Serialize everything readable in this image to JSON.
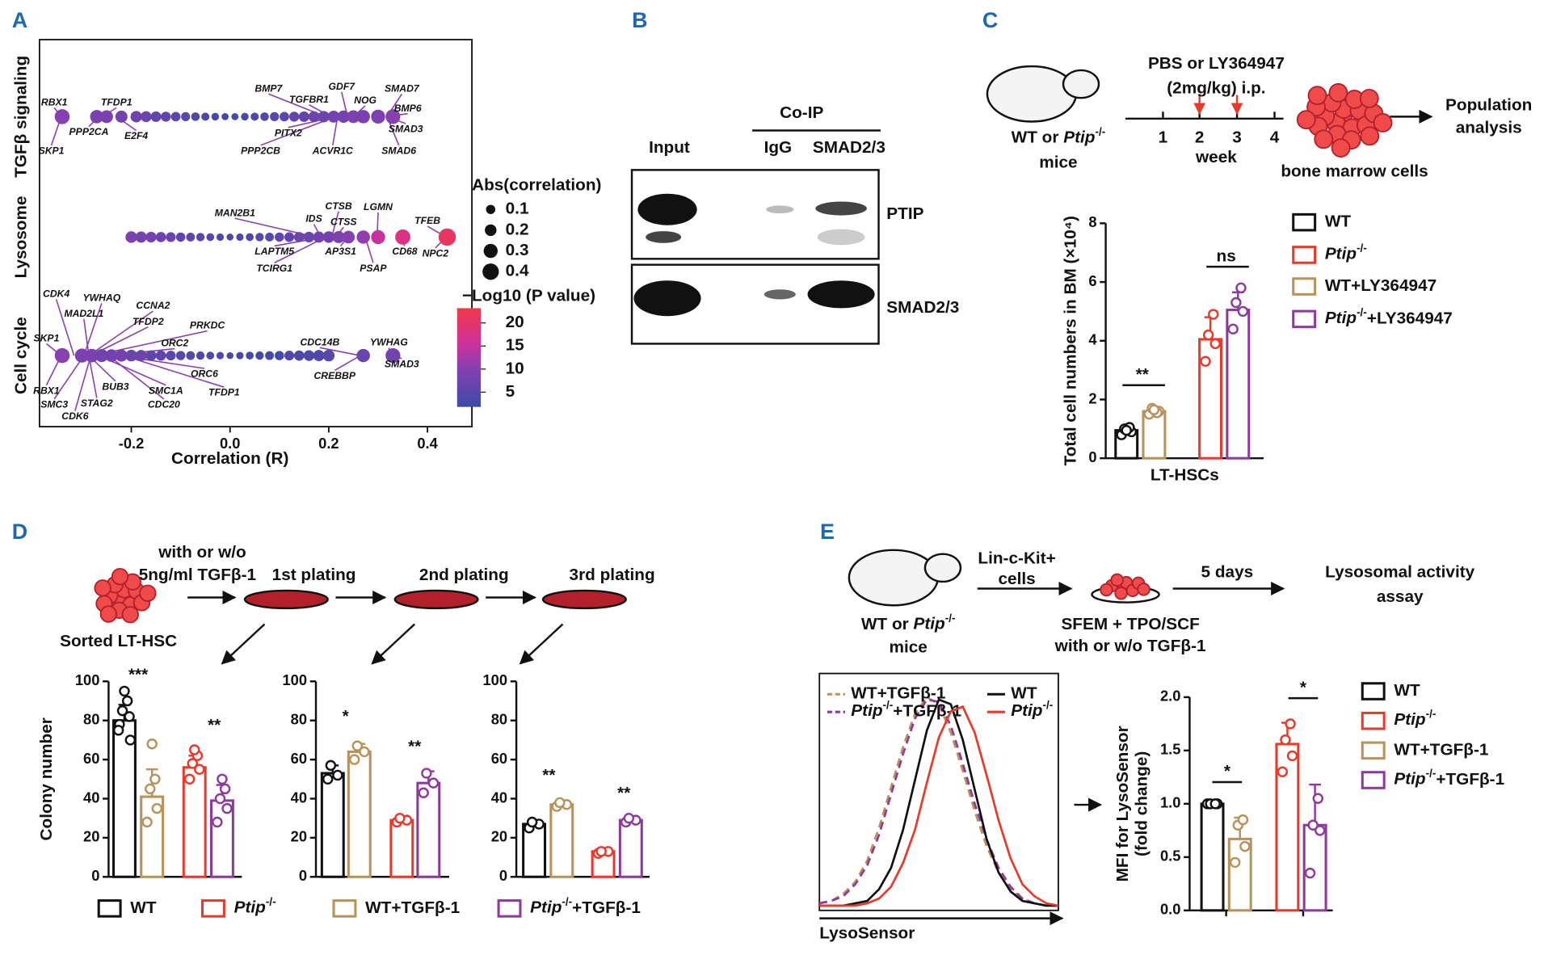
{
  "panels": {
    "letters": [
      "A",
      "B",
      "C",
      "D",
      "E"
    ]
  },
  "blot": {
    "co_ip": "Co-IP",
    "lanes": [
      "Input",
      "IgG",
      "SMAD2/3"
    ],
    "bands": [
      "PTIP",
      "SMAD2/3"
    ]
  },
  "scheme_c": {
    "mouse": [
      "WT or Ptip-/-",
      "mice"
    ],
    "treatment": [
      "PBS or LY364947",
      "(2mg/kg) i.p."
    ],
    "week_ticks": [
      "1",
      "2",
      "3",
      "4"
    ],
    "week": "week",
    "cells": "bone marrow cells",
    "result": [
      "Population",
      "analysis"
    ]
  },
  "scheme_d": {
    "treatment": [
      "with or w/o",
      "5ng/ml TGFβ-1"
    ],
    "platings": [
      "1st plating",
      "2nd plating",
      "3rd plating"
    ],
    "cells": "Sorted LT-HSC"
  },
  "scheme_e": {
    "mouse": [
      "WT or Ptip-/-",
      "mice"
    ],
    "cells": [
      "Lin-c-Kit+",
      "cells"
    ],
    "culture": [
      "SFEM + TPO/SCF",
      "with or w/o TGFβ-1"
    ],
    "time": "5 days",
    "result": [
      "Lysosomal activity",
      "assay"
    ]
  },
  "chart_data": [
    {
      "type": "dotplot",
      "xlabel": "Correlation (R)",
      "xlim": [
        -0.386,
        0.49
      ],
      "xticks": [
        -0.2,
        {
          "value": 0,
          "label": "0.0"
        },
        0.2,
        0.4
      ],
      "row_labels": [
        "TGFβ signaling",
        "Lysosome",
        "Cell cycle"
      ],
      "rows": [
        {
          "x": [
            -0.34,
            -0.27,
            -0.25,
            -0.22,
            -0.19,
            -0.17,
            -0.15,
            -0.13,
            -0.11,
            -0.09,
            -0.07,
            -0.05,
            -0.03,
            -0.01,
            0.01,
            0.03,
            0.05,
            0.07,
            0.09,
            0.11,
            0.13,
            0.15,
            0.17,
            0.19,
            0.21,
            0.23,
            0.25,
            0.27,
            0.3,
            0.33
          ],
          "p": [
            10,
            9,
            9,
            8,
            7,
            7,
            6,
            6,
            5,
            5,
            4,
            4,
            3,
            3,
            3,
            3,
            4,
            4,
            5,
            5,
            6,
            6,
            7,
            7,
            8,
            8,
            9,
            9,
            9,
            10
          ],
          "genes": [
            "RBX1",
            "SKP1",
            "PPP2CA",
            "TFDP1",
            "E2F4",
            "BMP7",
            "TGFBR1",
            "GDF7",
            "NOG",
            "SMAD7",
            "BMP6",
            "SMAD3",
            "SMAD6",
            "PITX2",
            "PPP2CB",
            "ACVR1C"
          ]
        },
        {
          "x": [
            -0.2,
            -0.18,
            -0.16,
            -0.14,
            -0.12,
            -0.1,
            -0.08,
            -0.06,
            -0.04,
            -0.02,
            0,
            0.02,
            0.04,
            0.06,
            0.08,
            0.1,
            0.12,
            0.14,
            0.16,
            0.18,
            0.2,
            0.22,
            0.24,
            0.27,
            0.3,
            0.35,
            0.44
          ],
          "p": [
            9,
            8,
            8,
            7,
            7,
            6,
            6,
            5,
            5,
            4,
            4,
            4,
            4,
            5,
            5,
            6,
            6,
            7,
            7,
            8,
            8,
            9,
            10,
            11,
            15,
            18,
            21
          ],
          "genes": [
            "MAN2B1",
            "IDS",
            "CTSB",
            "CTSS",
            "LGMN",
            "TFEB",
            "LAPTM5",
            "TCIRG1",
            "AP3S1",
            "PSAP",
            "CD68",
            "NPC2"
          ]
        },
        {
          "x": [
            -0.34,
            -0.3,
            -0.28,
            -0.26,
            -0.24,
            -0.22,
            -0.2,
            -0.18,
            -0.16,
            -0.14,
            -0.12,
            -0.1,
            -0.08,
            -0.06,
            -0.04,
            -0.02,
            0,
            0.02,
            0.04,
            0.06,
            0.08,
            0.1,
            0.12,
            0.14,
            0.16,
            0.18,
            0.2,
            0.27,
            0.33
          ],
          "p": [
            10,
            9,
            9,
            8,
            8,
            8,
            7,
            7,
            6,
            6,
            5,
            5,
            5,
            4,
            4,
            4,
            3,
            3,
            3,
            3,
            3,
            3,
            4,
            4,
            4,
            4,
            5,
            7,
            8
          ],
          "genes": [
            "CDK4",
            "YWHAQ",
            "MAD2L1",
            "CCNA2",
            "TFDP2",
            "PRKDC",
            "ORC2",
            "SKP1",
            "CDC14B",
            "YWHAG",
            "CREBBP",
            "SMAD3",
            "ORC6",
            "RBX1",
            "SMC3",
            "BUB3",
            "STAG2",
            "CDK6",
            "SMC1A",
            "CDC20",
            "TFDP1"
          ]
        }
      ],
      "size_legend": {
        "title": "Abs(correlation)",
        "values": [
          0.1,
          0.2,
          0.3,
          0.4
        ]
      },
      "color_legend": {
        "title": "−Log10 (P value)",
        "lim": [
          1.8,
          23.2
        ],
        "ticks": [
          5,
          10,
          15,
          20
        ]
      }
    },
    {
      "type": "bar",
      "categories": [
        "LT-HSCs"
      ],
      "ylabel": "Total cell numbers in BM (×10⁴)",
      "ylim": [
        0,
        8
      ],
      "yticks": [
        0,
        2,
        4,
        6,
        8
      ],
      "annotations": [
        "**",
        "ns"
      ],
      "series": [
        {
          "name": "WT",
          "color": "#111111",
          "values": [
            0.95
          ],
          "errors": [
            0.15
          ],
          "points": [
            0.8,
            0.9,
            1.0,
            1.05,
            0.95
          ]
        },
        {
          "name": "Ptip-/-",
          "color": "#e8392a",
          "values": [
            4.05
          ],
          "errors": [
            0.75
          ],
          "points": [
            3.3,
            3.9,
            4.2,
            4.9
          ]
        },
        {
          "name": "WT+LY364947",
          "color": "#b8925a",
          "values": [
            1.6
          ],
          "errors": [
            0.15
          ],
          "points": [
            1.5,
            1.6,
            1.7,
            1.55,
            1.65
          ]
        },
        {
          "name": "Ptip-/-+LY364947",
          "color": "#8e3a9c",
          "values": [
            5.05
          ],
          "errors": [
            0.6
          ],
          "points": [
            4.4,
            5.0,
            5.3,
            5.8
          ]
        }
      ]
    },
    {
      "type": "bar",
      "ylabel": "Colony number",
      "ylim": [
        0,
        100
      ],
      "yticks": [
        0,
        20,
        40,
        60,
        80,
        100
      ],
      "annotations": [
        "***",
        "**"
      ],
      "series": [
        {
          "name": "WT",
          "color": "#111111",
          "values": [
            80
          ],
          "errors": [
            8
          ],
          "points": [
            78,
            82,
            85,
            90,
            95,
            75,
            70
          ]
        },
        {
          "name": "Ptip-/-",
          "color": "#e8392a",
          "values": [
            56
          ],
          "errors": [
            6
          ],
          "points": [
            50,
            55,
            58,
            62,
            65
          ]
        },
        {
          "name": "WT+TGFβ-1",
          "color": "#b8925a",
          "values": [
            41
          ],
          "errors": [
            14
          ],
          "points": [
            28,
            35,
            45,
            50,
            68
          ]
        },
        {
          "name": "Ptip-/-+TGFβ-1",
          "color": "#8e3a9c",
          "values": [
            39
          ],
          "errors": [
            8
          ],
          "points": [
            28,
            35,
            40,
            45,
            50
          ]
        }
      ]
    },
    {
      "type": "bar",
      "ylim": [
        0,
        100
      ],
      "yticks": [
        0,
        20,
        40,
        60,
        80,
        100
      ],
      "annotations": [
        "*",
        "**"
      ],
      "series": [
        {
          "color": "#111111",
          "values": [
            53
          ],
          "errors": [
            4
          ],
          "points": [
            50,
            52,
            57
          ]
        },
        {
          "color": "#e8392a",
          "values": [
            29
          ],
          "errors": [
            1
          ],
          "points": [
            28,
            29,
            30
          ]
        },
        {
          "color": "#b8925a",
          "values": [
            64
          ],
          "errors": [
            4
          ],
          "points": [
            60,
            64,
            67
          ]
        },
        {
          "color": "#8e3a9c",
          "values": [
            48
          ],
          "errors": [
            6
          ],
          "points": [
            43,
            48,
            53
          ]
        }
      ]
    },
    {
      "type": "bar",
      "ylim": [
        0,
        100
      ],
      "yticks": [
        0,
        20,
        40,
        60,
        80,
        100
      ],
      "annotations": [
        "**",
        "**"
      ],
      "series": [
        {
          "color": "#111111",
          "values": [
            27
          ],
          "errors": [
            2
          ],
          "points": [
            25,
            27,
            28
          ]
        },
        {
          "color": "#e8392a",
          "values": [
            13
          ],
          "errors": [
            1
          ],
          "points": [
            12,
            13,
            13
          ]
        },
        {
          "color": "#b8925a",
          "values": [
            37
          ],
          "errors": [
            2
          ],
          "points": [
            36,
            37,
            38
          ]
        },
        {
          "color": "#8e3a9c",
          "values": [
            29
          ],
          "errors": [
            1
          ],
          "points": [
            28,
            29,
            30
          ]
        }
      ]
    },
    {
      "type": "histogram_lines",
      "xlabel": "LysoSensor",
      "xlim": [
        0,
        100
      ],
      "ylim": [
        0,
        100
      ],
      "x": [
        0,
        5,
        10,
        15,
        20,
        25,
        30,
        35,
        40,
        45,
        50,
        55,
        60,
        65,
        70,
        75,
        80,
        85,
        90,
        95,
        100
      ],
      "series": [
        {
          "name": "WT+TGFβ-1",
          "color": "#b8925a",
          "dashed": true,
          "values": [
            3,
            4,
            7,
            12,
            21,
            35,
            52,
            69,
            83,
            90,
            87,
            75,
            59,
            42,
            27,
            16,
            9,
            5,
            3,
            2,
            2
          ]
        },
        {
          "name": "Ptip-/-+TGFβ-1",
          "color": "#8e3a9c",
          "dashed": true,
          "values": [
            3,
            4,
            6,
            11,
            19,
            32,
            49,
            66,
            81,
            89,
            88,
            78,
            62,
            45,
            30,
            18,
            10,
            5,
            3,
            2,
            2
          ]
        },
        {
          "name": "WT",
          "color": "#111111",
          "dashed": false,
          "values": [
            2,
            2,
            2,
            3,
            4,
            9,
            18,
            34,
            55,
            76,
            89,
            87,
            72,
            51,
            30,
            16,
            8,
            4,
            3,
            2,
            2
          ]
        },
        {
          "name": "Ptip-/-",
          "color": "#e8392a",
          "dashed": false,
          "values": [
            2,
            2,
            2,
            2,
            3,
            5,
            10,
            20,
            34,
            54,
            73,
            84,
            86,
            75,
            57,
            38,
            22,
            11,
            6,
            3,
            2
          ]
        }
      ]
    },
    {
      "type": "bar",
      "ylabel": [
        "MFI for LysoSensor",
        "(fold change)"
      ],
      "ylim": [
        0,
        2
      ],
      "yticks": [
        {
          "value": 0,
          "label": "0.0"
        },
        0.5,
        {
          "value": 1,
          "label": "1.0"
        },
        1.5,
        {
          "value": 2,
          "label": "2.0"
        }
      ],
      "annotations": [
        "*",
        "*"
      ],
      "series": [
        {
          "name": "WT",
          "color": "#111111",
          "values": [
            1.0
          ],
          "errors": [
            0.02
          ],
          "points": [
            1.0,
            1.0,
            1.0,
            1.0
          ]
        },
        {
          "name": "Ptip-/-",
          "color": "#e8392a",
          "values": [
            1.56
          ],
          "errors": [
            0.2
          ],
          "points": [
            1.3,
            1.45,
            1.6,
            1.75
          ]
        },
        {
          "name": "WT+TGFβ-1",
          "color": "#b8925a",
          "values": [
            0.67
          ],
          "errors": [
            0.2
          ],
          "points": [
            0.45,
            0.6,
            0.8,
            0.85
          ]
        },
        {
          "name": "Ptip-/-+TGFβ-1",
          "color": "#8e3a9c",
          "values": [
            0.8
          ],
          "errors": [
            0.38
          ],
          "points": [
            0.35,
            0.75,
            0.8,
            1.05
          ]
        }
      ]
    }
  ]
}
